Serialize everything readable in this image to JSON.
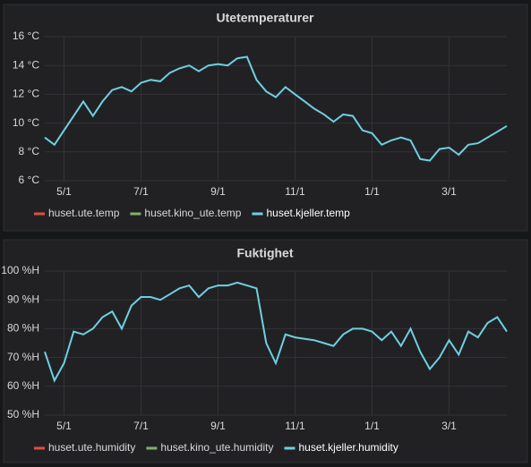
{
  "chart_data": [
    {
      "type": "line",
      "title": "Utetemperaturer",
      "x": [
        "4/15",
        "4/22",
        "5/1",
        "5/8",
        "5/15",
        "5/22",
        "6/1",
        "6/8",
        "6/15",
        "6/22",
        "7/1",
        "7/8",
        "7/15",
        "7/22",
        "8/1",
        "8/8",
        "8/15",
        "8/22",
        "9/1",
        "9/8",
        "9/15",
        "9/22",
        "10/1",
        "10/8",
        "10/15",
        "10/22",
        "11/1",
        "11/8",
        "11/15",
        "11/22",
        "12/1",
        "12/8",
        "12/15",
        "12/22",
        "1/1",
        "1/8",
        "1/15",
        "1/22",
        "2/1",
        "2/8",
        "2/15",
        "2/22",
        "3/1",
        "3/8",
        "3/15",
        "3/22",
        "4/1",
        "4/8",
        "4/15"
      ],
      "xticks": [
        "5/1",
        "7/1",
        "9/1",
        "11/1",
        "1/1",
        "3/1"
      ],
      "ylim": [
        6,
        16
      ],
      "yticks": [
        {
          "value": 6,
          "label": "6 °C"
        },
        {
          "value": 8,
          "label": "8 °C"
        },
        {
          "value": 10,
          "label": "10 °C"
        },
        {
          "value": 12,
          "label": "12 °C"
        },
        {
          "value": 14,
          "label": "14 °C"
        },
        {
          "value": 16,
          "label": "16 °C"
        }
      ],
      "grid": true,
      "series": [
        {
          "name": "huset.ute.temp",
          "color": "#e24d42",
          "values": [
            null,
            null,
            null,
            null,
            null,
            null,
            null,
            null,
            null,
            null,
            null,
            null,
            null,
            null,
            null,
            null,
            null,
            null,
            null,
            null,
            null,
            null,
            null,
            null,
            null,
            null,
            null,
            null,
            null,
            null,
            null,
            null,
            null,
            null,
            null,
            null,
            null,
            null,
            null,
            null,
            null,
            null,
            null,
            null,
            null,
            null,
            null,
            null,
            null
          ]
        },
        {
          "name": "huset.kino_ute.temp",
          "color": "#7eb26d",
          "values": [
            null,
            null,
            null,
            null,
            null,
            null,
            null,
            null,
            null,
            null,
            null,
            null,
            null,
            null,
            null,
            null,
            null,
            null,
            null,
            null,
            null,
            null,
            null,
            null,
            null,
            null,
            null,
            null,
            null,
            null,
            null,
            null,
            null,
            null,
            null,
            null,
            null,
            null,
            null,
            null,
            null,
            null,
            null,
            null,
            null,
            null,
            null,
            null,
            null
          ]
        },
        {
          "name": "huset.kjeller.temp",
          "color": "#6ed0e0",
          "values": [
            9,
            8.5,
            9.5,
            10.5,
            11.5,
            10.5,
            11.5,
            12.3,
            12.5,
            12.2,
            12.8,
            13,
            12.9,
            13.5,
            13.8,
            14,
            13.6,
            14,
            14.1,
            14,
            14.5,
            14.6,
            13,
            12.2,
            11.8,
            12.5,
            12,
            11.5,
            11,
            10.6,
            10.1,
            10.6,
            10.5,
            9.5,
            9.3,
            8.5,
            8.8,
            9,
            8.8,
            7.5,
            7.4,
            8.2,
            8.3,
            7.8,
            8.5,
            8.6,
            9,
            9.4,
            9.8
          ]
        }
      ]
    },
    {
      "type": "line",
      "title": "Fuktighet",
      "x": [
        "4/15",
        "4/22",
        "5/1",
        "5/8",
        "5/15",
        "5/22",
        "6/1",
        "6/8",
        "6/15",
        "6/22",
        "7/1",
        "7/8",
        "7/15",
        "7/22",
        "8/1",
        "8/8",
        "8/15",
        "8/22",
        "9/1",
        "9/8",
        "9/15",
        "9/22",
        "10/1",
        "10/8",
        "10/15",
        "10/22",
        "11/1",
        "11/8",
        "11/15",
        "11/22",
        "12/1",
        "12/8",
        "12/15",
        "12/22",
        "1/1",
        "1/8",
        "1/15",
        "1/22",
        "2/1",
        "2/8",
        "2/15",
        "2/22",
        "3/1",
        "3/8",
        "3/15",
        "3/22",
        "4/1",
        "4/8",
        "4/15"
      ],
      "xticks": [
        "5/1",
        "7/1",
        "9/1",
        "11/1",
        "1/1",
        "3/1"
      ],
      "ylim": [
        50,
        100
      ],
      "yticks": [
        {
          "value": 50,
          "label": "50 %H"
        },
        {
          "value": 60,
          "label": "60 %H"
        },
        {
          "value": 70,
          "label": "70 %H"
        },
        {
          "value": 80,
          "label": "80 %H"
        },
        {
          "value": 90,
          "label": "90 %H"
        },
        {
          "value": 100,
          "label": "100 %H"
        }
      ],
      "grid": true,
      "series": [
        {
          "name": "huset.ute.humidity",
          "color": "#e24d42",
          "values": [
            null,
            null,
            null,
            null,
            null,
            null,
            null,
            null,
            null,
            null,
            null,
            null,
            null,
            null,
            null,
            null,
            null,
            null,
            null,
            null,
            null,
            null,
            null,
            null,
            null,
            null,
            null,
            null,
            null,
            null,
            null,
            null,
            null,
            null,
            null,
            null,
            null,
            null,
            null,
            null,
            null,
            null,
            null,
            null,
            null,
            null,
            null,
            null,
            null
          ]
        },
        {
          "name": "huset.kino_ute.humidity",
          "color": "#7eb26d",
          "values": [
            null,
            null,
            null,
            null,
            null,
            null,
            null,
            null,
            null,
            null,
            null,
            null,
            null,
            null,
            null,
            null,
            null,
            null,
            null,
            null,
            null,
            null,
            null,
            null,
            null,
            null,
            null,
            null,
            null,
            null,
            null,
            null,
            null,
            null,
            null,
            null,
            null,
            null,
            null,
            null,
            null,
            null,
            null,
            null,
            null,
            null,
            null,
            null,
            null
          ]
        },
        {
          "name": "huset.kjeller.humidity",
          "color": "#6ed0e0",
          "values": [
            72,
            62,
            68,
            79,
            78,
            80,
            84,
            86,
            80,
            88,
            91,
            91,
            90,
            92,
            94,
            95,
            91,
            94,
            95,
            95,
            96,
            95,
            94,
            75,
            68,
            78,
            77,
            76.5,
            76,
            75,
            74,
            78,
            80,
            80,
            79,
            76,
            79,
            74,
            80,
            72,
            66,
            70,
            76,
            71,
            79,
            77,
            82,
            84,
            79
          ]
        }
      ]
    }
  ]
}
